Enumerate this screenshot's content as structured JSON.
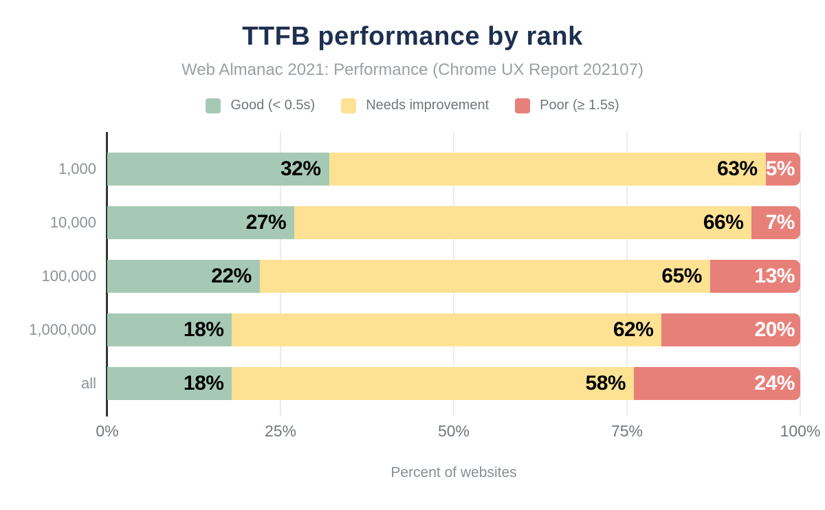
{
  "title": "TTFB performance by rank",
  "subtitle": "Web Almanac 2021: Performance (Chrome UX Report 202107)",
  "chart_data": {
    "type": "bar",
    "orientation": "horizontal",
    "stacked": true,
    "title": "TTFB performance by rank",
    "subtitle": "Web Almanac 2021: Performance (Chrome UX Report 202107)",
    "categories": [
      "1,000",
      "10,000",
      "100,000",
      "1,000,000",
      "all"
    ],
    "series": [
      {
        "name": "Good (< 0.5s)",
        "slug": "good",
        "color": "#a6c9b5",
        "label_color": "#000000",
        "values": [
          32,
          27,
          22,
          18,
          18
        ]
      },
      {
        "name": "Needs improvement",
        "slug": "needs-improvement",
        "color": "#fde294",
        "label_color": "#000000",
        "values": [
          63,
          66,
          65,
          62,
          58
        ]
      },
      {
        "name": "Poor (≥ 1.5s)",
        "slug": "poor",
        "color": "#e8807a",
        "label_color": "#ffffff",
        "values": [
          5,
          7,
          13,
          20,
          24
        ]
      }
    ],
    "xlabel": "Percent of websites",
    "ylabel": "",
    "x_ticks": [
      "0%",
      "25%",
      "50%",
      "75%",
      "100%"
    ],
    "xlim": [
      0,
      100
    ],
    "value_suffix": "%",
    "legend_position": "top",
    "grid": "vertical",
    "gridline_positions": [
      25,
      50,
      75,
      100
    ]
  },
  "colors": {
    "title": "#1e3050",
    "subtitle": "#9aa0a6",
    "axis_line": "#333333",
    "gridline": "#ececec",
    "tick_text": "#71787f"
  }
}
